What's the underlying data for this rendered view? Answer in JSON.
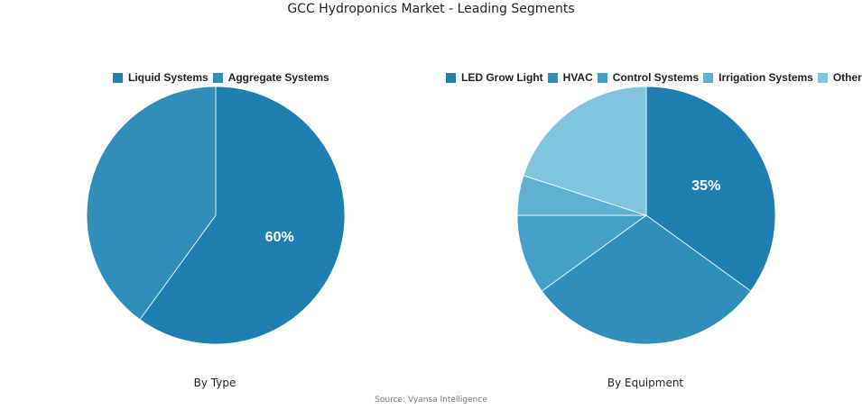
{
  "title": "GCC Hydroponics Market - Leading Segments",
  "source": "Source: Vyansa Intelligence",
  "chart_data": [
    {
      "type": "pie",
      "caption": "By Type",
      "categories": [
        "Liquid Systems",
        "Aggregate Systems"
      ],
      "values": [
        60,
        40
      ],
      "colors": [
        "#1f7fb0",
        "#2f8fba"
      ],
      "data_labels": [
        "60%",
        ""
      ],
      "legend_position": "top"
    },
    {
      "type": "pie",
      "caption": "By Equipment",
      "categories": [
        "LED Grow Light",
        "HVAC",
        "Control Systems",
        "Irrigation Systems",
        "Others"
      ],
      "values": [
        35,
        30,
        10,
        5,
        20
      ],
      "colors": [
        "#1f7fb0",
        "#2f8fba",
        "#45a0c8",
        "#5fb1d3",
        "#7fc5dd"
      ],
      "data_labels": [
        "35%",
        "",
        "",
        "",
        ""
      ],
      "legend_position": "top"
    }
  ]
}
